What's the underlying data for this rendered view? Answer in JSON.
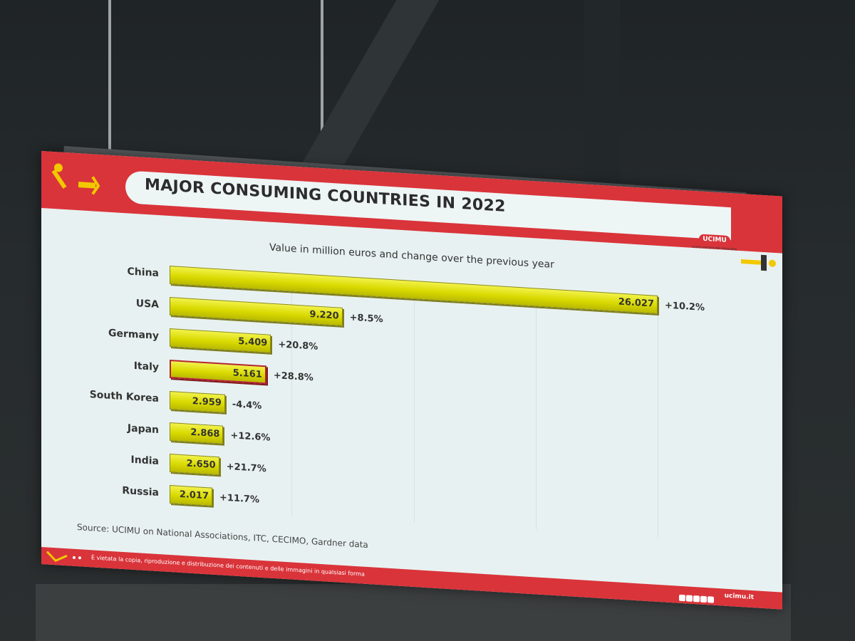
{
  "slide": {
    "title": "MAJOR CONSUMING COUNTRIES IN 2022",
    "subtitle": "Value in million euros and change over the previous year",
    "source": "Source: UCIMU on National Associations, ITC, CECIMO, Gardner data",
    "logo_text": "UCIMU",
    "logo_tagline": "UCIMU-SISTEMI PER PRODURRE",
    "footer_note": "È vietata la copia, riproduzione e distribuzione dei contenuti e delle immagini in qualsiasi forma",
    "footer_site": "ucimu.it"
  },
  "colors": {
    "header_red": "#d9343a",
    "bar_yellow": "#d9d900",
    "highlight_border": "#b3262e",
    "slide_bg": "#e8f1f1"
  },
  "chart_data": {
    "type": "bar",
    "orientation": "horizontal",
    "title": "MAJOR CONSUMING COUNTRIES IN 2022",
    "subtitle": "Value in million euros and change over the previous year",
    "categories": [
      "China",
      "USA",
      "Germany",
      "Italy",
      "South Korea",
      "Japan",
      "India",
      "Russia"
    ],
    "values": [
      26027,
      9220,
      5409,
      5161,
      2959,
      2868,
      2650,
      2017
    ],
    "value_labels": [
      "26.027",
      "9.220",
      "5.409",
      "5.161",
      "2.959",
      "2.868",
      "2.650",
      "2.017"
    ],
    "change_labels": [
      "+10.2%",
      "+8.5%",
      "+20.8%",
      "+28.8%",
      "-4.4%",
      "+12.6%",
      "+21.7%",
      "+11.7%"
    ],
    "highlighted": "Italy",
    "xlim": [
      0,
      26027
    ],
    "grid": true,
    "legend": "none"
  }
}
